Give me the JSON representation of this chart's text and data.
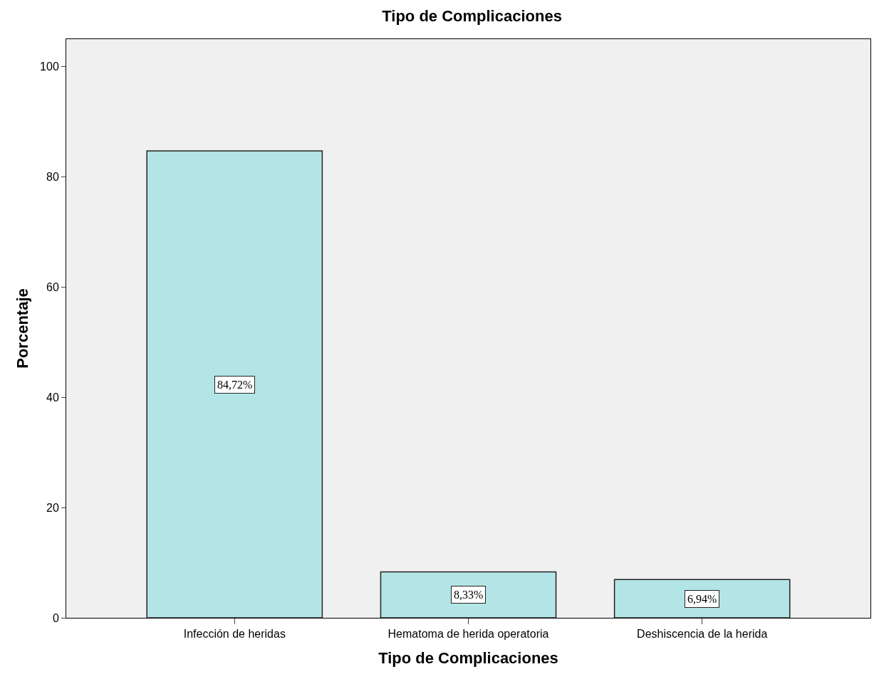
{
  "chart_data": {
    "type": "bar",
    "title": "Tipo de Complicaciones",
    "xlabel": "Tipo de Complicaciones",
    "ylabel": "Porcentaje",
    "categories": [
      "Infección de heridas",
      "Hematoma de herida operatoria",
      "Deshiscencia de la herida"
    ],
    "values": [
      84.72,
      8.33,
      6.94
    ],
    "value_labels": [
      "84,72%",
      "8,33%",
      "6,94%"
    ],
    "color": "#b3e5e6",
    "ylim": [
      0,
      105
    ],
    "yticks": [
      0,
      20,
      40,
      60,
      80,
      100
    ],
    "grid": false,
    "legend": false
  }
}
